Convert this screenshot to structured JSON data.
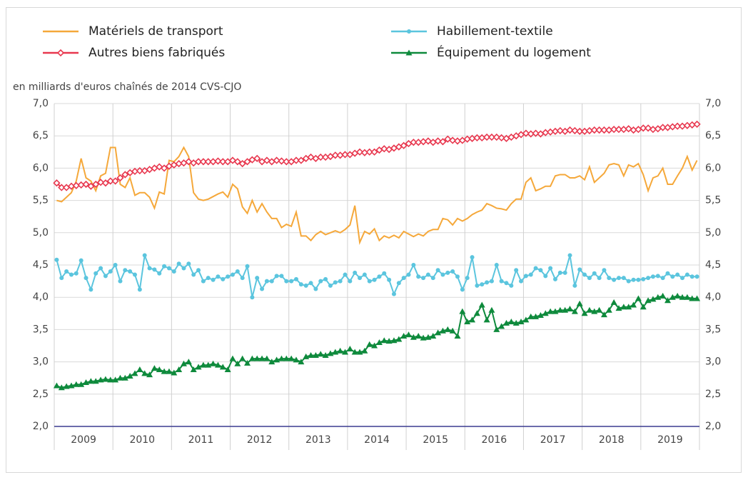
{
  "chart_data": {
    "type": "line",
    "y_label": "en milliards d'euros chaînés de 2014 CVS-CJO",
    "legend": "top",
    "grid": true,
    "categories": [
      null,
      null,
      null,
      null,
      null,
      null,
      "2009",
      null,
      null,
      null,
      null,
      null,
      null,
      null,
      null,
      null,
      null,
      null,
      "2010",
      null,
      null,
      null,
      null,
      null,
      null,
      null,
      null,
      null,
      null,
      null,
      "2011",
      null,
      null,
      null,
      null,
      null,
      null,
      null,
      null,
      null,
      null,
      null,
      "2012",
      null,
      null,
      null,
      null,
      null,
      null,
      null,
      null,
      null,
      null,
      null,
      "2013",
      null,
      null,
      null,
      null,
      null,
      null,
      null,
      null,
      null,
      null,
      null,
      "2014",
      null,
      null,
      null,
      null,
      null,
      null,
      null,
      null,
      null,
      null,
      null,
      "2015",
      null,
      null,
      null,
      null,
      null,
      null,
      null,
      null,
      null,
      null,
      null,
      "2016",
      null,
      null,
      null,
      null,
      null,
      null,
      null,
      null,
      null,
      null,
      null,
      "2017",
      null,
      null,
      null,
      null,
      null,
      null,
      null,
      null,
      null,
      null,
      null,
      "2018",
      null,
      null,
      null,
      null,
      null,
      null,
      null,
      null,
      null,
      null,
      null,
      "2019",
      null,
      null,
      null,
      null,
      null
    ],
    "ylim": [
      2,
      7
    ],
    "yticks": [
      {
        "value": 2,
        "label": "2,0"
      },
      {
        "value": 2.5,
        "label": "2,5"
      },
      {
        "value": 3,
        "label": "3,0"
      },
      {
        "value": 3.5,
        "label": "3,5"
      },
      {
        "value": 4,
        "label": "4,0"
      },
      {
        "value": 4.5,
        "label": "4,5"
      },
      {
        "value": 5,
        "label": "5,0"
      },
      {
        "value": 5.5,
        "label": "5,5"
      },
      {
        "value": 6,
        "label": "6,0"
      },
      {
        "value": 6.5,
        "label": "6,5"
      },
      {
        "value": 7,
        "label": "7,0"
      }
    ],
    "series": [
      {
        "name": "Matériels de transport",
        "color": "#f5a83a",
        "marker": "none",
        "values": [
          5.5,
          5.48,
          5.55,
          5.62,
          5.8,
          6.15,
          5.85,
          5.8,
          5.65,
          5.88,
          5.92,
          6.32,
          6.32,
          5.75,
          5.7,
          5.85,
          5.58,
          5.62,
          5.62,
          5.55,
          5.38,
          5.63,
          5.6,
          6.12,
          6.1,
          6.18,
          6.32,
          6.18,
          5.62,
          5.52,
          5.5,
          5.52,
          5.56,
          5.6,
          5.63,
          5.55,
          5.75,
          5.68,
          5.4,
          5.3,
          5.5,
          5.32,
          5.45,
          5.32,
          5.22,
          5.22,
          5.08,
          5.13,
          5.1,
          5.32,
          4.95,
          4.95,
          4.88,
          4.97,
          5.02,
          4.97,
          5.0,
          5.03,
          5.0,
          5.05,
          5.12,
          5.42,
          4.85,
          5.02,
          4.98,
          5.06,
          4.88,
          4.95,
          4.92,
          4.96,
          4.92,
          5.02,
          4.98,
          4.94,
          4.98,
          4.95,
          5.02,
          5.05,
          5.05,
          5.22,
          5.2,
          5.12,
          5.22,
          5.18,
          5.22,
          5.28,
          5.32,
          5.35,
          5.45,
          5.42,
          5.38,
          5.37,
          5.35,
          5.45,
          5.52,
          5.52,
          5.78,
          5.85,
          5.65,
          5.68,
          5.72,
          5.72,
          5.88,
          5.9,
          5.9,
          5.85,
          5.85,
          5.88,
          5.82,
          6.02,
          5.78,
          5.85,
          5.92,
          6.05,
          6.07,
          6.05,
          5.88,
          6.05,
          6.02,
          6.07,
          5.9,
          5.65,
          5.85,
          5.88,
          6.0,
          5.75,
          5.75,
          5.88,
          6.0,
          6.18,
          5.97,
          6.12
        ]
      },
      {
        "name": "Habillement-textile",
        "color": "#5bc5de",
        "marker": "circle",
        "values": [
          4.58,
          4.3,
          4.4,
          4.35,
          4.37,
          4.57,
          4.3,
          4.12,
          4.37,
          4.45,
          4.33,
          4.4,
          4.5,
          4.25,
          4.42,
          4.4,
          4.35,
          4.12,
          4.65,
          4.45,
          4.43,
          4.37,
          4.48,
          4.45,
          4.4,
          4.52,
          4.45,
          4.52,
          4.35,
          4.42,
          4.25,
          4.3,
          4.27,
          4.32,
          4.28,
          4.32,
          4.35,
          4.4,
          4.3,
          4.48,
          4.0,
          4.3,
          4.13,
          4.25,
          4.25,
          4.33,
          4.33,
          4.25,
          4.25,
          4.28,
          4.2,
          4.18,
          4.22,
          4.13,
          4.25,
          4.28,
          4.18,
          4.23,
          4.25,
          4.35,
          4.25,
          4.38,
          4.3,
          4.35,
          4.25,
          4.27,
          4.32,
          4.37,
          4.27,
          4.05,
          4.22,
          4.3,
          4.35,
          4.5,
          4.32,
          4.3,
          4.35,
          4.3,
          4.42,
          4.35,
          4.38,
          4.4,
          4.32,
          4.12,
          4.3,
          4.62,
          4.18,
          4.2,
          4.23,
          4.25,
          4.5,
          4.25,
          4.22,
          4.18,
          4.42,
          4.25,
          4.33,
          4.35,
          4.45,
          4.42,
          4.33,
          4.45,
          4.28,
          4.38,
          4.38,
          4.65,
          4.18,
          4.43,
          4.35,
          4.3,
          4.37,
          4.3,
          4.42,
          4.3,
          4.27,
          4.3,
          4.3,
          4.25,
          4.27,
          4.27,
          4.28,
          4.3,
          4.32,
          4.33,
          4.3,
          4.37,
          4.32,
          4.35,
          4.3,
          4.35,
          4.32,
          4.32
        ]
      },
      {
        "name": "Autres biens fabriqués",
        "color": "#e8384f",
        "marker": "diamond",
        "values": [
          5.77,
          5.7,
          5.7,
          5.72,
          5.73,
          5.74,
          5.75,
          5.72,
          5.75,
          5.78,
          5.77,
          5.8,
          5.8,
          5.85,
          5.9,
          5.93,
          5.95,
          5.96,
          5.96,
          5.98,
          6.0,
          6.02,
          6.0,
          6.03,
          6.05,
          6.07,
          6.08,
          6.1,
          6.08,
          6.1,
          6.1,
          6.1,
          6.1,
          6.11,
          6.1,
          6.1,
          6.12,
          6.1,
          6.07,
          6.1,
          6.13,
          6.15,
          6.1,
          6.12,
          6.1,
          6.12,
          6.11,
          6.1,
          6.1,
          6.12,
          6.12,
          6.15,
          6.17,
          6.15,
          6.17,
          6.17,
          6.18,
          6.2,
          6.2,
          6.21,
          6.21,
          6.23,
          6.25,
          6.24,
          6.25,
          6.25,
          6.28,
          6.3,
          6.29,
          6.31,
          6.33,
          6.35,
          6.38,
          6.4,
          6.4,
          6.41,
          6.42,
          6.4,
          6.42,
          6.41,
          6.45,
          6.43,
          6.42,
          6.43,
          6.45,
          6.46,
          6.47,
          6.47,
          6.48,
          6.48,
          6.48,
          6.47,
          6.46,
          6.48,
          6.5,
          6.52,
          6.54,
          6.53,
          6.54,
          6.53,
          6.55,
          6.56,
          6.57,
          6.58,
          6.57,
          6.59,
          6.58,
          6.57,
          6.57,
          6.58,
          6.59,
          6.59,
          6.59,
          6.59,
          6.6,
          6.6,
          6.6,
          6.61,
          6.59,
          6.6,
          6.62,
          6.62,
          6.6,
          6.61,
          6.63,
          6.63,
          6.64,
          6.65,
          6.65,
          6.66,
          6.67,
          6.68
        ]
      },
      {
        "name": "Équipement du logement",
        "color": "#0e8a3c",
        "marker": "triangle",
        "values": [
          2.63,
          2.6,
          2.62,
          2.63,
          2.65,
          2.65,
          2.68,
          2.7,
          2.7,
          2.72,
          2.73,
          2.72,
          2.72,
          2.75,
          2.75,
          2.78,
          2.82,
          2.88,
          2.82,
          2.8,
          2.9,
          2.88,
          2.85,
          2.85,
          2.83,
          2.88,
          2.97,
          3.0,
          2.88,
          2.92,
          2.95,
          2.95,
          2.97,
          2.95,
          2.92,
          2.88,
          3.05,
          2.97,
          3.05,
          2.98,
          3.05,
          3.05,
          3.05,
          3.05,
          3.0,
          3.03,
          3.05,
          3.05,
          3.05,
          3.03,
          3.0,
          3.08,
          3.1,
          3.1,
          3.12,
          3.1,
          3.13,
          3.15,
          3.17,
          3.15,
          3.2,
          3.15,
          3.15,
          3.17,
          3.27,
          3.25,
          3.3,
          3.33,
          3.32,
          3.33,
          3.35,
          3.4,
          3.42,
          3.38,
          3.4,
          3.37,
          3.38,
          3.4,
          3.45,
          3.48,
          3.5,
          3.48,
          3.4,
          3.78,
          3.62,
          3.65,
          3.75,
          3.88,
          3.65,
          3.8,
          3.5,
          3.55,
          3.6,
          3.62,
          3.6,
          3.62,
          3.65,
          3.7,
          3.7,
          3.72,
          3.75,
          3.78,
          3.78,
          3.8,
          3.8,
          3.82,
          3.78,
          3.9,
          3.75,
          3.8,
          3.78,
          3.8,
          3.73,
          3.8,
          3.92,
          3.83,
          3.85,
          3.85,
          3.88,
          3.98,
          3.85,
          3.95,
          3.97,
          4.0,
          4.02,
          3.95,
          4.0,
          4.02,
          4.0,
          4.0,
          3.98,
          3.98
        ]
      }
    ]
  }
}
